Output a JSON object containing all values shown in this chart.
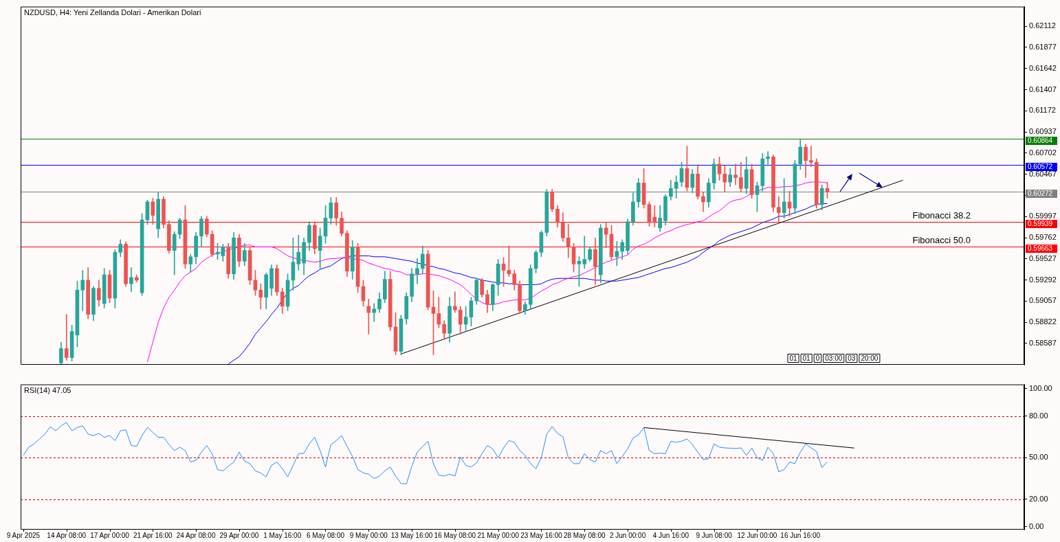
{
  "chart_data": [
    {
      "type": "candlestick",
      "title": "NZDUSD, H4: Yeni Zellanda Dolari - Amerikan Dolari",
      "tick_labels": "y",
      "categories": [
        null,
        null,
        null,
        null,
        null,
        null,
        null,
        null,
        null,
        null,
        null,
        null,
        null,
        null,
        null,
        null,
        null,
        null,
        null,
        null,
        null,
        null,
        null,
        null,
        null,
        null,
        null,
        null,
        null,
        null,
        null,
        null,
        null,
        null,
        null,
        null,
        null,
        null,
        null,
        null,
        null,
        null,
        null,
        null,
        null,
        null,
        null,
        null,
        null,
        null,
        null,
        null,
        null,
        null,
        null,
        null,
        null,
        null,
        null,
        null,
        null,
        null,
        null,
        null,
        null,
        null,
        null,
        null,
        null,
        null,
        null,
        null,
        null,
        null,
        null,
        null,
        null,
        null,
        null,
        null,
        null,
        null,
        null,
        null,
        null,
        null,
        null,
        null,
        null,
        null,
        null,
        null,
        null,
        null,
        null,
        null,
        null,
        null,
        null,
        null,
        null,
        null,
        null,
        null,
        null,
        null,
        null,
        null,
        null,
        null,
        null,
        null,
        null,
        null,
        null,
        null,
        null,
        null,
        null,
        null,
        null,
        null,
        null,
        null,
        null,
        null,
        null,
        null,
        null,
        null,
        null,
        null,
        null,
        null,
        null,
        null,
        null,
        null,
        null,
        null,
        null,
        null,
        null,
        null,
        null,
        null,
        null,
        null,
        null,
        null,
        null,
        null,
        null,
        null,
        null,
        null,
        null,
        null,
        null,
        null,
        null,
        null,
        null,
        null,
        null,
        null,
        null,
        null,
        null,
        null,
        null,
        null,
        null,
        null,
        null,
        null,
        null,
        null,
        null,
        null,
        null,
        null,
        null,
        null,
        null,
        null
      ],
      "ohlc": [
        null,
        null,
        null,
        null,
        null,
        null,
        null,
        [
          0.5837,
          0.586,
          0.5836,
          0.5853
        ],
        [
          0.5853,
          0.5891,
          0.584,
          0.5843
        ],
        [
          0.5843,
          0.5879,
          0.5839,
          0.5872
        ],
        [
          0.5868,
          0.5928,
          0.5855,
          0.5918
        ],
        [
          0.5918,
          0.594,
          0.5895,
          0.5929
        ],
        [
          0.5929,
          0.5943,
          0.5886,
          0.5891
        ],
        [
          0.5891,
          0.5922,
          0.5884,
          0.592
        ],
        [
          0.592,
          0.5929,
          0.59,
          0.5907
        ],
        [
          0.5903,
          0.5942,
          0.5898,
          0.5935
        ],
        [
          0.5935,
          0.594,
          0.5904,
          0.5909
        ],
        [
          0.5909,
          0.5963,
          0.5898,
          0.596
        ],
        [
          0.596,
          0.5974,
          0.5955,
          0.5969
        ],
        [
          0.5969,
          0.5972,
          0.5922,
          0.5925
        ],
        [
          0.5925,
          0.5943,
          0.5916,
          0.5932
        ],
        [
          0.5932,
          0.5935,
          0.5927,
          0.5929
        ],
        [
          0.5915,
          0.6003,
          0.5912,
          0.5996
        ],
        [
          0.5996,
          0.6018,
          0.5991,
          0.6016
        ],
        [
          0.6016,
          0.602,
          0.5991,
          0.6001
        ],
        [
          0.5986,
          0.6027,
          0.5976,
          0.6019
        ],
        [
          0.6019,
          0.6022,
          0.5987,
          0.5991
        ],
        [
          0.5991,
          0.5995,
          0.5959,
          0.5962
        ],
        [
          0.5962,
          0.5983,
          0.5935,
          0.598
        ],
        [
          0.598,
          0.5998,
          0.5975,
          0.5996
        ],
        [
          0.5996,
          0.6012,
          0.5942,
          0.5947
        ],
        [
          0.5947,
          0.5958,
          0.5938,
          0.5955
        ],
        [
          0.5955,
          0.5982,
          0.5947,
          0.5978
        ],
        [
          0.5978,
          0.6,
          0.5966,
          0.5997
        ],
        [
          0.5997,
          0.6,
          0.5977,
          0.598
        ],
        [
          0.598,
          0.5984,
          0.5955,
          0.5958
        ],
        [
          0.5958,
          0.597,
          0.5952,
          0.596
        ],
        [
          0.5956,
          0.5969,
          0.595,
          0.5966
        ],
        [
          0.5966,
          0.597,
          0.5931,
          0.5936
        ],
        [
          0.5936,
          0.5982,
          0.593,
          0.5976
        ],
        [
          0.5976,
          0.598,
          0.5944,
          0.595
        ],
        [
          0.595,
          0.597,
          0.5945,
          0.5962
        ],
        [
          0.5962,
          0.5965,
          0.5924,
          0.5929
        ],
        [
          0.5929,
          0.594,
          0.5912,
          0.5918
        ],
        [
          0.5918,
          0.5925,
          0.5897,
          0.591
        ],
        [
          0.591,
          0.5937,
          0.5897,
          0.5935
        ],
        [
          0.592,
          0.5946,
          0.5912,
          0.5942
        ],
        [
          0.5942,
          0.5946,
          0.5912,
          0.5916
        ],
        [
          0.5916,
          0.592,
          0.5892,
          0.59
        ],
        [
          0.59,
          0.5936,
          0.5895,
          0.5929
        ],
        [
          0.5929,
          0.5976,
          0.5918,
          0.5949
        ],
        [
          0.5947,
          0.5979,
          0.594,
          0.596
        ],
        [
          0.5948,
          0.5976,
          0.5935,
          0.5971
        ],
        [
          0.5971,
          0.5994,
          0.5962,
          0.599
        ],
        [
          0.599,
          0.5994,
          0.5958,
          0.5964
        ],
        [
          0.5962,
          0.5987,
          0.5942,
          0.5978
        ],
        [
          0.5978,
          0.6012,
          0.597,
          0.5998
        ],
        [
          0.5998,
          0.6021,
          0.5991,
          0.6015
        ],
        [
          0.6015,
          0.6021,
          0.599,
          0.5998
        ],
        [
          0.5998,
          0.6005,
          0.5978,
          0.5981
        ],
        [
          0.5981,
          0.5984,
          0.5933,
          0.5939
        ],
        [
          0.5939,
          0.5973,
          0.593,
          0.5966
        ],
        [
          0.5966,
          0.597,
          0.5915,
          0.5922
        ],
        [
          0.5922,
          0.5929,
          0.59,
          0.5906
        ],
        [
          0.59,
          0.5908,
          0.5869,
          0.5893
        ],
        [
          0.5893,
          0.5903,
          0.5883,
          0.5897
        ],
        [
          0.5897,
          0.5915,
          0.5893,
          0.5908
        ],
        [
          0.5908,
          0.5939,
          0.5904,
          0.593
        ],
        [
          0.593,
          0.5939,
          0.5873,
          0.5877
        ],
        [
          0.5877,
          0.5893,
          0.5846,
          0.585
        ],
        [
          0.585,
          0.589,
          0.5846,
          0.5886
        ],
        [
          0.5886,
          0.5915,
          0.588,
          0.5911
        ],
        [
          0.5911,
          0.5942,
          0.5905,
          0.5936
        ],
        [
          0.5936,
          0.5953,
          0.5925,
          0.5942
        ],
        [
          0.5942,
          0.5967,
          0.5936,
          0.5958
        ],
        [
          0.5958,
          0.5962,
          0.5896,
          0.5899
        ],
        [
          0.5899,
          0.5917,
          0.5846,
          0.5892
        ],
        [
          0.5892,
          0.591,
          0.5876,
          0.588
        ],
        [
          0.588,
          0.5884,
          0.5863,
          0.587
        ],
        [
          0.587,
          0.591,
          0.586,
          0.59
        ],
        [
          0.59,
          0.5916,
          0.5893,
          0.5896
        ],
        [
          0.5896,
          0.59,
          0.5869,
          0.588
        ],
        [
          0.588,
          0.59,
          0.5873,
          0.5888
        ],
        [
          0.5888,
          0.591,
          0.5878,
          0.5906
        ],
        [
          0.5906,
          0.5931,
          0.5902,
          0.5929
        ],
        [
          0.5929,
          0.5931,
          0.591,
          0.5913
        ],
        [
          0.5913,
          0.5918,
          0.5893,
          0.5902
        ],
        [
          0.5902,
          0.5925,
          0.5895,
          0.5924
        ],
        [
          0.5924,
          0.5952,
          0.5912,
          0.5947
        ],
        [
          0.5947,
          0.5954,
          0.5922,
          0.594
        ],
        [
          0.594,
          0.5967,
          0.5933,
          0.5936
        ],
        [
          0.5936,
          0.594,
          0.5918,
          0.5924
        ],
        [
          0.5924,
          0.5928,
          0.5892,
          0.5895
        ],
        [
          0.5895,
          0.5905,
          0.5891,
          0.5902
        ],
        [
          0.5902,
          0.5946,
          0.5897,
          0.5942
        ],
        [
          0.5942,
          0.5962,
          0.5937,
          0.596
        ],
        [
          0.596,
          0.5984,
          0.5955,
          0.5982
        ],
        [
          0.5982,
          0.603,
          0.5978,
          0.6027
        ],
        [
          0.6027,
          0.603,
          0.6005,
          0.6008
        ],
        [
          0.6008,
          0.6012,
          0.5988,
          0.5993
        ],
        [
          0.5993,
          0.6004,
          0.5972,
          0.5976
        ],
        [
          0.5976,
          0.5991,
          0.5954,
          0.5966
        ],
        [
          0.5966,
          0.597,
          0.5938,
          0.5947
        ],
        [
          0.5947,
          0.5955,
          0.5922,
          0.595
        ],
        [
          0.5947,
          0.5978,
          0.5942,
          0.5952
        ],
        [
          0.5952,
          0.5966,
          0.595,
          0.5963
        ],
        [
          0.5963,
          0.5976,
          0.5924,
          0.5944
        ],
        [
          0.5935,
          0.5991,
          0.5926,
          0.5987
        ],
        [
          0.5987,
          0.5993,
          0.5965,
          0.598
        ],
        [
          0.598,
          0.599,
          0.5952,
          0.5955
        ],
        [
          0.5955,
          0.5972,
          0.5945,
          0.5961
        ],
        [
          0.5961,
          0.5974,
          0.5952,
          0.5971
        ],
        [
          0.5962,
          0.5997,
          0.5958,
          0.5994
        ],
        [
          0.5994,
          0.6026,
          0.599,
          0.6016
        ],
        [
          0.6016,
          0.6042,
          0.601,
          0.6037
        ],
        [
          0.6037,
          0.6053,
          0.6009,
          0.6013
        ],
        [
          0.6013,
          0.6016,
          0.5989,
          0.5993
        ],
        [
          0.5999,
          0.6012,
          0.5988,
          0.5993
        ],
        [
          0.5987,
          0.6012,
          0.5983,
          0.5998
        ],
        [
          0.5995,
          0.6024,
          0.599,
          0.6022
        ],
        [
          0.6022,
          0.604,
          0.6018,
          0.6031
        ],
        [
          0.6031,
          0.6045,
          0.602,
          0.6038
        ],
        [
          0.6038,
          0.606,
          0.6033,
          0.6053
        ],
        [
          0.6053,
          0.6078,
          0.6028,
          0.6032
        ],
        [
          0.6032,
          0.6052,
          0.6026,
          0.6047
        ],
        [
          0.6047,
          0.6056,
          0.6019,
          0.6022
        ],
        [
          0.6022,
          0.6027,
          0.6005,
          0.6016
        ],
        [
          0.6016,
          0.6042,
          0.601,
          0.6037
        ],
        [
          0.6037,
          0.6064,
          0.603,
          0.6058
        ],
        [
          0.6058,
          0.6066,
          0.604,
          0.6047
        ],
        [
          0.6047,
          0.6056,
          0.6027,
          0.6038
        ],
        [
          0.6038,
          0.6053,
          0.6033,
          0.6046
        ],
        [
          0.6046,
          0.6058,
          0.6035,
          0.6043
        ],
        [
          0.6043,
          0.606,
          0.6027,
          0.6031
        ],
        [
          0.6031,
          0.6066,
          0.6025,
          0.6052
        ],
        [
          0.6052,
          0.6058,
          0.602,
          0.6024
        ],
        [
          0.6024,
          0.6038,
          0.6005,
          0.6034
        ],
        [
          0.6034,
          0.607,
          0.6028,
          0.6064
        ],
        [
          0.6064,
          0.6072,
          0.6058,
          0.6066
        ],
        [
          0.6066,
          0.6068,
          0.6005,
          0.601
        ],
        [
          0.601,
          0.6022,
          0.5993,
          0.6004
        ],
        [
          0.6004,
          0.6042,
          0.5998,
          0.6016
        ],
        [
          0.6016,
          0.6028,
          0.6,
          0.6009
        ],
        [
          0.6009,
          0.6062,
          0.6003,
          0.6058
        ],
        [
          0.6058,
          0.6086,
          0.6052,
          0.6077
        ],
        [
          0.6077,
          0.608,
          0.6043,
          0.6062
        ],
        [
          0.6062,
          0.6078,
          0.6055,
          0.606
        ],
        [
          0.606,
          0.6064,
          0.6009,
          0.6013
        ],
        [
          0.6013,
          0.6035,
          0.6007,
          0.6031
        ],
        [
          0.6031,
          0.6038,
          0.602,
          0.6027
        ],
        null,
        null,
        null,
        null,
        null,
        null,
        null,
        null,
        null,
        null,
        null,
        null,
        null,
        null,
        null,
        null,
        null,
        null,
        null,
        null,
        null,
        null,
        null,
        null,
        null,
        null,
        null,
        null,
        null,
        null,
        null,
        null,
        null,
        null,
        null,
        null
      ],
      "series": [
        {
          "type": "line",
          "color": "#ff00ff",
          "values": [
            null,
            null,
            null,
            null,
            null,
            null,
            null,
            null,
            null,
            null,
            null,
            null,
            null,
            null,
            null,
            null,
            null,
            null,
            null,
            null,
            null,
            null,
            null,
            0.5838,
            0.586,
            0.5882,
            0.5898,
            0.591,
            0.5918,
            0.5927,
            0.5934,
            0.5938,
            0.5942,
            0.5949,
            0.5953,
            0.5957,
            0.5959,
            0.596,
            0.5963,
            0.5964,
            0.5966,
            0.5968,
            0.5968,
            0.5966,
            0.5966,
            0.5966,
            0.5966,
            0.5964,
            0.596,
            0.5956,
            0.5954,
            0.5952,
            0.5951,
            0.595,
            0.5949,
            0.595,
            0.5952,
            0.5953,
            0.5953,
            0.5954,
            0.5954,
            0.5953,
            0.5952,
            0.5951,
            0.5948,
            0.5946,
            0.5944,
            0.5942,
            0.5941,
            0.5939,
            0.5938,
            0.5935,
            0.5935,
            0.5935,
            0.5936,
            0.5936,
            0.5935,
            0.5934,
            0.5932,
            0.593,
            0.5927,
            0.5924,
            0.5919,
            0.5913,
            0.5908,
            0.5904,
            0.5902,
            0.5902,
            0.5903,
            0.5905,
            0.5906,
            0.5907,
            0.5907,
            0.5907,
            0.5909,
            0.5913,
            0.5917,
            0.592,
            0.5924,
            0.5926,
            0.5929,
            0.5931,
            0.5933,
            0.5934,
            0.5937,
            0.594,
            0.5943,
            0.5946,
            0.5949,
            0.5951,
            0.5953,
            0.5955,
            0.5957,
            0.5963,
            0.5967,
            0.5969,
            0.5972,
            0.5976,
            0.5979,
            0.5982,
            0.5984,
            0.5987,
            0.5989,
            0.5991,
            0.5992,
            0.5994,
            0.5995,
            0.5999,
            0.6003,
            0.6006,
            0.6011,
            0.6016,
            0.6018,
            0.6019,
            0.6022,
            0.6026,
            0.6028,
            0.603,
            0.6032,
            0.6032,
            0.6032,
            0.6033,
            0.6033,
            0.6034,
            0.6035,
            0.6037,
            0.6038,
            0.6038,
            0.6038,
            0.6037,
            null,
            null,
            null,
            null,
            null,
            null,
            null,
            null,
            null,
            null,
            null,
            null,
            null,
            null,
            null,
            null,
            null,
            null,
            null,
            null,
            null,
            null,
            null,
            null,
            null,
            null,
            null,
            null,
            null,
            null,
            null,
            null,
            null,
            null,
            null,
            null
          ]
        },
        {
          "type": "line",
          "color": "#0000ff",
          "values": [
            null,
            null,
            null,
            null,
            null,
            null,
            null,
            null,
            null,
            null,
            null,
            null,
            null,
            null,
            null,
            null,
            null,
            null,
            null,
            null,
            null,
            null,
            null,
            null,
            null,
            null,
            null,
            null,
            null,
            null,
            null,
            null,
            null,
            null,
            null,
            null,
            null,
            null,
            0.5836,
            0.584,
            0.5844,
            0.5851,
            0.5859,
            0.5869,
            0.5876,
            0.5883,
            0.5891,
            0.5898,
            0.5907,
            0.5915,
            0.592,
            0.5923,
            0.5929,
            0.5934,
            0.5937,
            0.5941,
            0.5943,
            0.5945,
            0.5949,
            0.5953,
            0.5955,
            0.5956,
            0.5956,
            0.5956,
            0.5956,
            0.5955,
            0.5955,
            0.5955,
            0.5954,
            0.5953,
            0.5952,
            0.5951,
            0.595,
            0.5948,
            0.5947,
            0.5945,
            0.5944,
            0.5942,
            0.5941,
            0.5939,
            0.5937,
            0.5936,
            0.5934,
            0.5932,
            0.5931,
            0.5929,
            0.5928,
            0.5927,
            0.5926,
            0.5926,
            0.5925,
            0.5925,
            0.5924,
            0.5924,
            0.5924,
            0.5924,
            0.5925,
            0.5928,
            0.593,
            0.5931,
            0.5931,
            0.5931,
            0.5931,
            0.5931,
            0.5931,
            0.593,
            0.5929,
            0.5929,
            0.5928,
            0.5928,
            0.5928,
            0.5929,
            0.593,
            0.5931,
            0.5932,
            0.5934,
            0.5936,
            0.5938,
            0.594,
            0.5942,
            0.5943,
            0.5945,
            0.5947,
            0.5949,
            0.5952,
            0.5955,
            0.596,
            0.5964,
            0.5968,
            0.5973,
            0.5976,
            0.5979,
            0.5981,
            0.5983,
            0.5985,
            0.5987,
            0.599,
            0.5993,
            0.5995,
            0.5997,
            0.6,
            0.6,
            0.6002,
            0.6004,
            0.6006,
            0.6008,
            0.6011,
            0.6013,
            0.6014,
            0.6014,
            null,
            null,
            null,
            null,
            null,
            null,
            null,
            null,
            null,
            null,
            null,
            null,
            null,
            null,
            null,
            null,
            null,
            null,
            null,
            null,
            null,
            null,
            null,
            null,
            null,
            null,
            null,
            null,
            null,
            null,
            null,
            null,
            null,
            null,
            null,
            null
          ]
        },
        {
          "type": "line",
          "color": "#000000",
          "values": [
            null,
            null,
            null,
            null,
            null,
            null,
            null,
            null,
            null,
            null,
            null,
            null,
            null,
            null,
            null,
            null,
            null,
            null,
            null,
            null,
            null,
            null,
            null,
            null,
            null,
            null,
            null,
            null,
            null,
            null,
            null,
            null,
            null,
            null,
            null,
            null,
            null,
            null,
            null,
            null,
            null,
            null,
            null,
            null,
            null,
            null,
            null,
            null,
            null,
            null,
            null,
            null,
            null,
            null,
            null,
            null,
            null,
            null,
            null,
            null,
            null,
            null,
            null,
            null,
            null,
            null,
            null,
            null,
            null,
            null,
            0.5847,
            null,
            null,
            null,
            null,
            null,
            null,
            null,
            null,
            null,
            null,
            null,
            null,
            null,
            null,
            null,
            null,
            null,
            null,
            null,
            null,
            null,
            null,
            null,
            null,
            null,
            null,
            null,
            null,
            null,
            null,
            null,
            null,
            null,
            null,
            null,
            null,
            null,
            null,
            null,
            null,
            null,
            null,
            null,
            null,
            null,
            null,
            null,
            null,
            null,
            null,
            null,
            null,
            null,
            null,
            null,
            null,
            null,
            null,
            null,
            null,
            null,
            null,
            null,
            null,
            null,
            null,
            null,
            null,
            null,
            null,
            null,
            null,
            null,
            null,
            null,
            null,
            null,
            null,
            null,
            null,
            null,
            null,
            null,
            null,
            null,
            null,
            null,
            null,
            null,
            null,
            null,
            null,
            0.604,
            null,
            null,
            null,
            null,
            null,
            null,
            null,
            null,
            null,
            null,
            null,
            null,
            null,
            null,
            null,
            null,
            null,
            null,
            null,
            null,
            null,
            null
          ]
        }
      ],
      "ylim": [
        0.5835,
        0.6233
      ],
      "yticks": [
        0.58587,
        0.58822,
        0.59057,
        0.59292,
        0.59527,
        0.59762,
        0.59997,
        {
          "value": 0.60232,
          "label": null
        },
        0.60467,
        0.60702,
        0.60937,
        0.61172,
        0.61407,
        0.61642,
        0.61877,
        0.62112
      ],
      "ref_lines": [
        {
          "axis": "y",
          "value": 0.60864,
          "label": "0.60864",
          "color": "#008000"
        },
        {
          "axis": "y",
          "value": 0.60572,
          "label": "0.60572",
          "color": "#0000ff"
        },
        {
          "axis": "y",
          "value": 0.60272,
          "label": "0.60272",
          "color": "#808080"
        },
        {
          "axis": "y",
          "value": 0.59939,
          "label": "0.59939",
          "color": "#ff0000"
        },
        {
          "axis": "y",
          "value": 0.59663,
          "label": "0.59663",
          "color": "#ff0000"
        }
      ],
      "annotations": [
        {
          "text": "Fibonacci 38.2",
          "y": 0.59939
        },
        {
          "text": "Fibonacci 50.0",
          "y": 0.59663
        },
        "01",
        "01",
        "0",
        "03:00",
        "03",
        "20:00"
      ]
    },
    {
      "type": "line",
      "title": "RSI(14) 47.05",
      "categories": [
        "9 Apr 2025",
        null,
        null,
        null,
        null,
        null,
        null,
        null,
        "14 Apr 08:00",
        null,
        null,
        null,
        null,
        null,
        null,
        null,
        "17 Apr 00:00",
        null,
        null,
        null,
        null,
        null,
        null,
        null,
        "21 Apr 16:00",
        null,
        null,
        null,
        null,
        null,
        null,
        null,
        "24 Apr 08:00",
        null,
        null,
        null,
        null,
        null,
        null,
        null,
        "29 Apr 00:00",
        null,
        null,
        null,
        null,
        null,
        null,
        null,
        "1 May 16:00",
        null,
        null,
        null,
        null,
        null,
        null,
        null,
        "6 May 08:00",
        null,
        null,
        null,
        null,
        null,
        null,
        null,
        "9 May 00:00",
        null,
        null,
        null,
        null,
        null,
        null,
        null,
        "13 May 16:00",
        null,
        null,
        null,
        null,
        null,
        null,
        null,
        "16 May 08:00",
        null,
        null,
        null,
        null,
        null,
        null,
        null,
        "21 May 00:00",
        null,
        null,
        null,
        null,
        null,
        null,
        null,
        "23 May 16:00",
        null,
        null,
        null,
        null,
        null,
        null,
        null,
        "28 May 08:00",
        null,
        null,
        null,
        null,
        null,
        null,
        null,
        "2 Jun 00:00",
        null,
        null,
        null,
        null,
        null,
        null,
        null,
        "4 Jun 16:00",
        null,
        null,
        null,
        null,
        null,
        null,
        null,
        "9 Jun 08:00",
        null,
        null,
        null,
        null,
        null,
        null,
        null,
        "12 Jun 00:00",
        null,
        null,
        null,
        null,
        null,
        null,
        null,
        "16 Jun 16:00",
        null,
        null,
        null,
        null,
        null,
        null,
        null,
        null,
        null,
        null,
        null,
        null,
        null,
        null,
        null,
        null,
        null,
        null,
        null,
        null,
        null,
        null,
        null,
        null,
        null,
        null,
        null,
        null,
        null,
        null,
        null,
        null,
        null,
        null,
        null,
        null,
        null,
        null,
        null,
        null,
        null
      ],
      "series": [
        {
          "color": "#1e90ff",
          "values": [
            51.7,
            57.6,
            60,
            63.6,
            67.1,
            72.4,
            69.5,
            73.1,
            75.5,
            69.5,
            71.9,
            73.1,
            67.1,
            66,
            67.6,
            64.8,
            66,
            62.4,
            69.5,
            70.2,
            58.8,
            58.3,
            66,
            71.9,
            68.3,
            64.8,
            64.8,
            59.5,
            55.2,
            57.6,
            55.2,
            46.9,
            48.1,
            54,
            58.8,
            52.9,
            41.4,
            40.5,
            43.8,
            46.9,
            54,
            47.6,
            45.7,
            40.5,
            39,
            36.2,
            44.5,
            46.9,
            42.1,
            36.2,
            44.5,
            52.9,
            53.3,
            60,
            64.8,
            55.2,
            43.3,
            59.5,
            62.4,
            66,
            58.1,
            51,
            41.4,
            39,
            38.1,
            35,
            36.7,
            40.5,
            43.3,
            36.7,
            31.4,
            31,
            43.8,
            54,
            58.1,
            61.9,
            45.7,
            37.4,
            36.7,
            38.1,
            36.7,
            50.5,
            44.5,
            43.3,
            46.2,
            52.9,
            58.8,
            56.4,
            50,
            57.1,
            62.4,
            61.2,
            55.2,
            51.7,
            45.7,
            42.1,
            50,
            67,
            72.6,
            67.6,
            65.2,
            50,
            45.7,
            45.7,
            52.9,
            48.6,
            46.9,
            55.2,
            52.9,
            55.2,
            45.7,
            51,
            56.4,
            64.3,
            66.4,
            71.9,
            55.2,
            52.9,
            53.3,
            52.9,
            61.9,
            61.2,
            61.9,
            63.6,
            59.5,
            54,
            48.6,
            49.3,
            60,
            57.6,
            57.1,
            56.9,
            56.7,
            57.1,
            51.7,
            56.9,
            50,
            48.1,
            57.6,
            52.9,
            39.8,
            41.4,
            46.9,
            45.7,
            54,
            60,
            57.1,
            54.5,
            42.9,
            47.05,
            null,
            null,
            null,
            null,
            null,
            null,
            null,
            null,
            null,
            null,
            null,
            null,
            null,
            null,
            null,
            null,
            null,
            null,
            null,
            null,
            null,
            null,
            null,
            null,
            null,
            null,
            null,
            null,
            null,
            null,
            null,
            null,
            null,
            null,
            null,
            null
          ]
        },
        {
          "color": "#000000",
          "values": [
            null,
            null,
            null,
            null,
            null,
            null,
            null,
            null,
            null,
            null,
            null,
            null,
            null,
            null,
            null,
            null,
            null,
            null,
            null,
            null,
            null,
            null,
            null,
            null,
            null,
            null,
            null,
            null,
            null,
            null,
            null,
            null,
            null,
            null,
            null,
            null,
            null,
            null,
            null,
            null,
            null,
            null,
            null,
            null,
            null,
            null,
            null,
            null,
            null,
            null,
            null,
            null,
            null,
            null,
            null,
            null,
            null,
            null,
            null,
            null,
            null,
            null,
            null,
            null,
            null,
            null,
            null,
            null,
            null,
            null,
            null,
            null,
            null,
            null,
            null,
            null,
            null,
            null,
            null,
            null,
            null,
            null,
            null,
            null,
            null,
            null,
            null,
            null,
            null,
            null,
            null,
            null,
            null,
            null,
            null,
            null,
            null,
            null,
            null,
            null,
            null,
            null,
            null,
            null,
            null,
            null,
            null,
            null,
            null,
            null,
            null,
            null,
            null,
            null,
            null,
            71.8,
            null,
            null,
            null,
            null,
            null,
            null,
            null,
            null,
            null,
            null,
            null,
            null,
            null,
            null,
            null,
            null,
            null,
            null,
            null,
            null,
            null,
            null,
            null,
            null,
            null,
            null,
            null,
            null,
            null,
            null,
            null,
            null,
            null,
            null,
            null,
            null,
            null,
            null,
            57.0,
            null,
            null,
            null,
            null,
            null,
            null,
            null,
            null,
            null,
            null,
            null,
            null,
            null,
            null,
            null,
            null,
            null,
            null,
            null,
            null,
            null,
            null,
            null,
            null,
            null,
            null,
            null,
            null,
            null,
            null,
            null
          ]
        }
      ],
      "ylim": [
        -2,
        103
      ],
      "yticks": [
        {
          "value": 0,
          "label": "0.00"
        },
        {
          "value": 20,
          "label": "20.00"
        },
        {
          "value": 50,
          "label": "50.00"
        },
        {
          "value": 80,
          "label": "80.00"
        },
        {
          "value": 100,
          "label": "100.00"
        }
      ],
      "ref_lines": [
        {
          "axis": "y",
          "value": 80,
          "color": "#c00000",
          "line_style": "dashed"
        },
        {
          "axis": "y",
          "value": 50,
          "color": "#c00000",
          "line_style": "dashed"
        },
        {
          "axis": "y",
          "value": 20,
          "color": "#c00000",
          "line_style": "dashed"
        }
      ]
    }
  ]
}
